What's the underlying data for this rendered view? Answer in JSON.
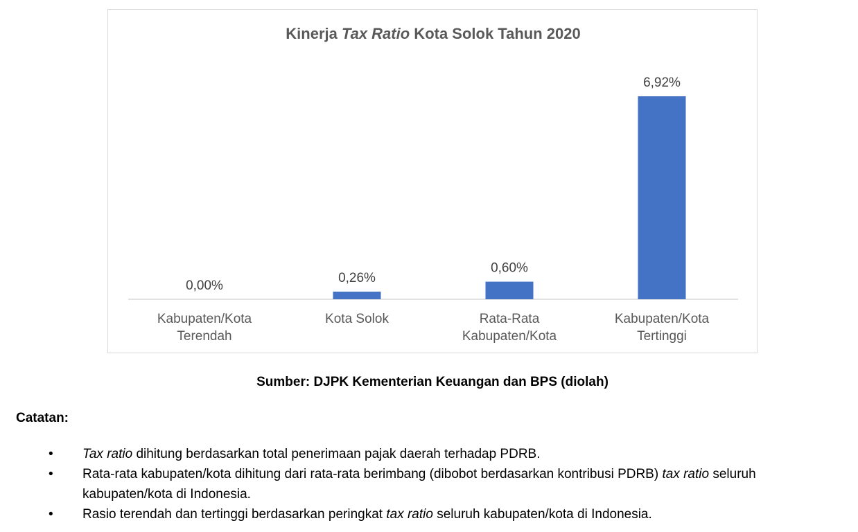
{
  "chart_data": {
    "type": "bar",
    "title": {
      "before": "Kinerja ",
      "italic": "Tax Ratio",
      "after": " Kota Solok Tahun 2020"
    },
    "categories": [
      [
        "Kabupaten/Kota",
        "Terendah"
      ],
      [
        "Kota Solok"
      ],
      [
        "Rata-Rata",
        "Kabupaten/Kota"
      ],
      [
        "Kabupaten/Kota",
        "Tertinggi"
      ]
    ],
    "values": [
      0.0,
      0.26,
      0.6,
      6.92
    ],
    "value_labels": [
      "0,00%",
      "0,26%",
      "0,60%",
      "6,92%"
    ],
    "unit": "%",
    "bar_color": "#4472c4",
    "ylim": [
      0,
      7.5
    ],
    "grid": false,
    "legend": "none"
  },
  "source": "Sumber: DJPK Kementerian Keuangan dan BPS (diolah)",
  "notes": {
    "title": "Catatan:",
    "bullet": "•",
    "items": [
      {
        "parts": [
          {
            "text": "Tax ratio",
            "italic": true
          },
          {
            "text": " dihitung berdasarkan total penerimaan pajak daerah terhadap PDRB.",
            "italic": false
          }
        ]
      },
      {
        "parts": [
          {
            "text": "Rata-rata kabupaten/kota dihitung dari rata-rata berimbang (dibobot berdasarkan kontribusi PDRB) ",
            "italic": false
          },
          {
            "text": "tax ratio",
            "italic": true
          },
          {
            "text": " seluruh kabupaten/kota di Indonesia.",
            "italic": false
          }
        ]
      },
      {
        "parts": [
          {
            "text": "Rasio terendah dan tertinggi berdasarkan peringkat ",
            "italic": false
          },
          {
            "text": "tax ratio",
            "italic": true
          },
          {
            "text": " seluruh kabupaten/kota di Indonesia.",
            "italic": false
          }
        ]
      }
    ]
  }
}
